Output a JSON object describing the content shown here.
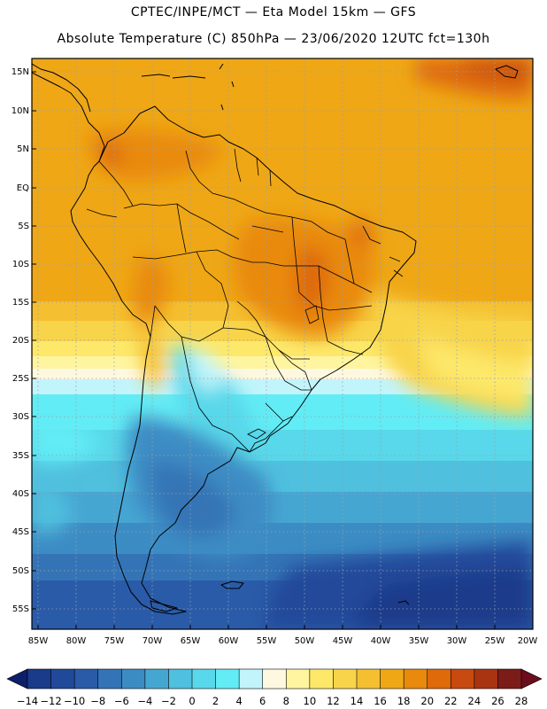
{
  "header": {
    "line1": "CPTEC/INPE/MCT —  Eta Model 15km — GFS",
    "line2": "Absolute Temperature (C) 850hPa — 23/06/2020 12UTC fct=130h"
  },
  "latitude_labels": [
    "15N",
    "10N",
    "5N",
    "EQ",
    "5S",
    "10S",
    "15S",
    "20S",
    "25S",
    "30S",
    "35S",
    "40S",
    "45S",
    "50S",
    "55S"
  ],
  "longitude_labels": [
    "85W",
    "80W",
    "75W",
    "70W",
    "65W",
    "60W",
    "55W",
    "50W",
    "45W",
    "40W",
    "35W",
    "30W",
    "25W",
    "20W"
  ],
  "colorbar": {
    "labels": [
      "-14",
      "-12",
      "-10",
      "-8",
      "-6",
      "-4",
      "-2",
      "0",
      "2",
      "4",
      "6",
      "8",
      "10",
      "12",
      "14",
      "16",
      "18",
      "20",
      "22",
      "24",
      "26",
      "28"
    ],
    "under_color": "#0c1f6b",
    "over_color": "#6a0d1c",
    "colors": [
      "#1a3a8a",
      "#20499a",
      "#2a5ba8",
      "#3474b6",
      "#3c8cc4",
      "#46a6d2",
      "#4fc0de",
      "#58d8ea",
      "#62ecf5",
      "#c2f4fb",
      "#fff8e0",
      "#fff5a0",
      "#fde86a",
      "#f8d44a",
      "#f4bf30",
      "#efa716",
      "#e98a0c",
      "#de6a0a",
      "#c84a10",
      "#a83412",
      "#7c1c18"
    ]
  },
  "colors": {
    "cold_deep": "#1a3a8a",
    "cold_mid": "#3474b6",
    "cyan": "#58d8ea",
    "warm": "#efa716",
    "hot": "#de6a0a"
  }
}
